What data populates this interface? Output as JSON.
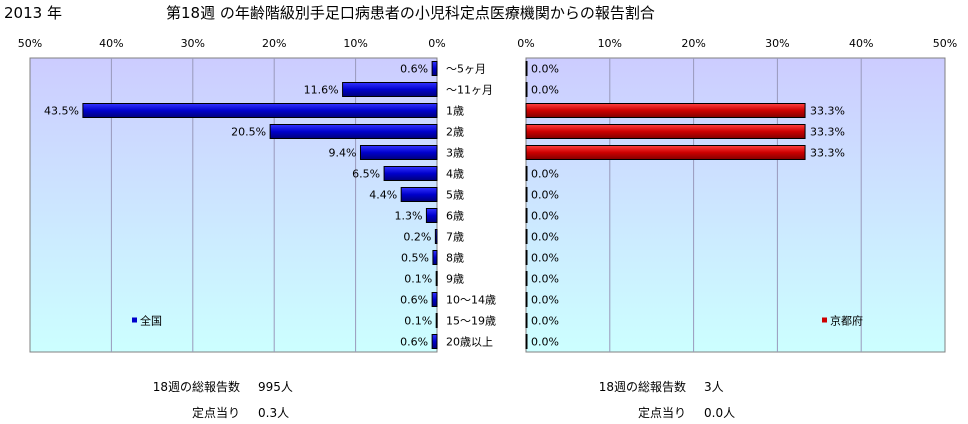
{
  "header": {
    "year": "2013 年",
    "title": "第18週 の年齢階級別手足口病患者の小児科定点医療機関からの報告割合"
  },
  "colors": {
    "national_bar": "#0000cc",
    "kyoto_bar": "#cc0000",
    "plot_top": "#ccccff",
    "plot_bottom": "#ccffff"
  },
  "chart_data": {
    "type": "bar",
    "title": "第18週 の年齢階級別手足口病患者の小児科定点医療機関からの報告割合",
    "categories": [
      "～5ヶ月",
      "～11ヶ月",
      "1歳",
      "2歳",
      "3歳",
      "4歳",
      "5歳",
      "6歳",
      "7歳",
      "8歳",
      "9歳",
      "10～14歳",
      "15～19歳",
      "20歳以上"
    ],
    "xlim": [
      0,
      50
    ],
    "xticks": [
      "50%",
      "40%",
      "30%",
      "20%",
      "10%",
      "0%"
    ],
    "xticks_right": [
      "0%",
      "10%",
      "20%",
      "30%",
      "40%",
      "50%"
    ],
    "grid": true,
    "legend_position": "bottom",
    "series": [
      {
        "name": "全国",
        "values": [
          0.6,
          11.6,
          43.5,
          20.5,
          9.4,
          6.5,
          4.4,
          1.3,
          0.2,
          0.5,
          0.1,
          0.6,
          0.1,
          0.6
        ],
        "labels": [
          "0.6%",
          "11.6%",
          "43.5%",
          "20.5%",
          "9.4%",
          "6.5%",
          "4.4%",
          "1.3%",
          "0.2%",
          "0.5%",
          "0.1%",
          "0.6%",
          "0.1%",
          "0.6%"
        ]
      },
      {
        "name": "京都府",
        "values": [
          0.0,
          0.0,
          33.3,
          33.3,
          33.3,
          0.0,
          0.0,
          0.0,
          0.0,
          0.0,
          0.0,
          0.0,
          0.0,
          0.0
        ],
        "labels": [
          "0.0%",
          "0.0%",
          "33.3%",
          "33.3%",
          "33.3%",
          "0.0%",
          "0.0%",
          "0.0%",
          "0.0%",
          "0.0%",
          "0.0%",
          "0.0%",
          "0.0%",
          "0.0%"
        ]
      }
    ]
  },
  "stats": {
    "national": {
      "total_label": "18週の総報告数",
      "total_value": "995人",
      "per_label": "定点当り",
      "per_value": "0.3人"
    },
    "kyoto": {
      "total_label": "18週の総報告数",
      "total_value": "3人",
      "per_label": "定点当り",
      "per_value": "0.0人"
    }
  }
}
